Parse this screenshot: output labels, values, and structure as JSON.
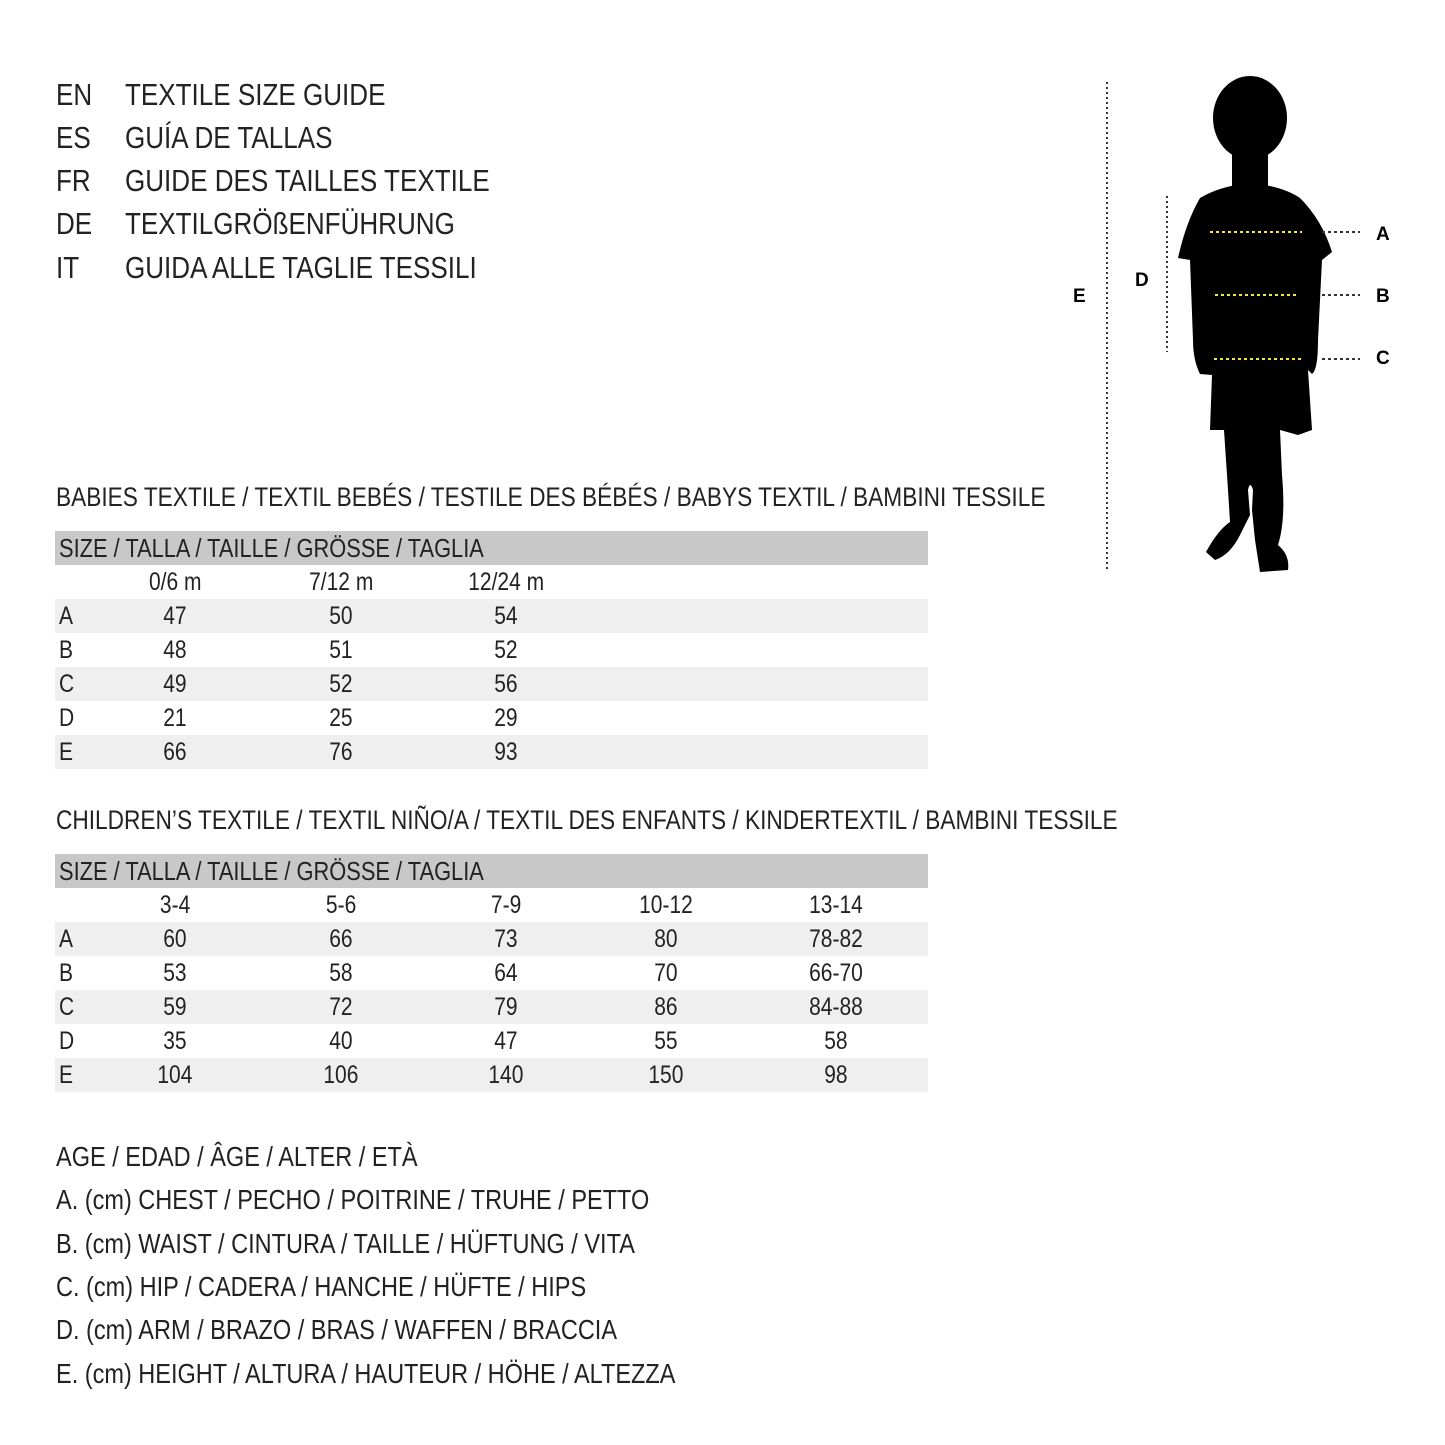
{
  "titles": [
    {
      "code": "EN",
      "text": "TEXTILE SIZE GUIDE"
    },
    {
      "code": "ES",
      "text": "GUÍA DE TALLAS"
    },
    {
      "code": "FR",
      "text": "GUIDE DES TAILLES TEXTILE"
    },
    {
      "code": "DE",
      "text": "TEXTILGRÖßENFÜHRUNG"
    },
    {
      "code": "IT",
      "text": "GUIDA ALLE TAGLIE TESSILI"
    }
  ],
  "figure": {
    "labels": {
      "a": "A",
      "b": "B",
      "c": "C",
      "d": "D",
      "e": "E"
    },
    "accent": "#f5e642"
  },
  "babies": {
    "heading": "BABIES TEXTILE / TEXTIL BEBÉS / TESTILE DES BÉBÉS / BABYS TEXTIL / BAMBINI TESSILE",
    "size_header": "SIZE / TALLA / TAILLE / GRÖSSE / TAGLIA",
    "columns": [
      "0/6 m",
      "7/12 m",
      "12/24 m"
    ],
    "rows": [
      {
        "label": "A",
        "values": [
          "47",
          "50",
          "54"
        ]
      },
      {
        "label": "B",
        "values": [
          "48",
          "51",
          "52"
        ]
      },
      {
        "label": "C",
        "values": [
          "49",
          "52",
          "56"
        ]
      },
      {
        "label": "D",
        "values": [
          "21",
          "25",
          "29"
        ]
      },
      {
        "label": "E",
        "values": [
          "66",
          "76",
          "93"
        ]
      }
    ]
  },
  "children": {
    "heading": "CHILDREN’S TEXTILE / TEXTIL NIÑO/A / TEXTIL DES ENFANTS / KINDERTEXTIL / BAMBINI TESSILE",
    "size_header": "SIZE / TALLA / TAILLE / GRÖSSE / TAGLIA",
    "columns": [
      "3-4",
      "5-6",
      "7-9",
      "10-12",
      "13-14"
    ],
    "rows": [
      {
        "label": "A",
        "values": [
          "60",
          "66",
          "73",
          "80",
          "78-82"
        ]
      },
      {
        "label": "B",
        "values": [
          "53",
          "58",
          "64",
          "70",
          "66-70"
        ]
      },
      {
        "label": "C",
        "values": [
          "59",
          "72",
          "79",
          "86",
          "84-88"
        ]
      },
      {
        "label": "D",
        "values": [
          "35",
          "40",
          "47",
          "55",
          "58"
        ]
      },
      {
        "label": "E",
        "values": [
          "104",
          "106",
          "140",
          "150",
          "98"
        ]
      }
    ]
  },
  "legend": [
    "AGE / EDAD / ÂGE / ALTER / ETÀ",
    "A. (cm) CHEST / PECHO / POITRINE / TRUHE / PETTO",
    "B. (cm) WAIST / CINTURA / TAILLE / HÜFTUNG / VITA",
    "C. (cm) HIP / CADERA / HANCHE / HÜFTE / HIPS",
    "D. (cm) ARM / BRAZO / BRAS / WAFFEN / BRACCIA",
    "E. (cm) HEIGHT / ALTURA / HAUTEUR / HÖHE / ALTEZZA"
  ]
}
